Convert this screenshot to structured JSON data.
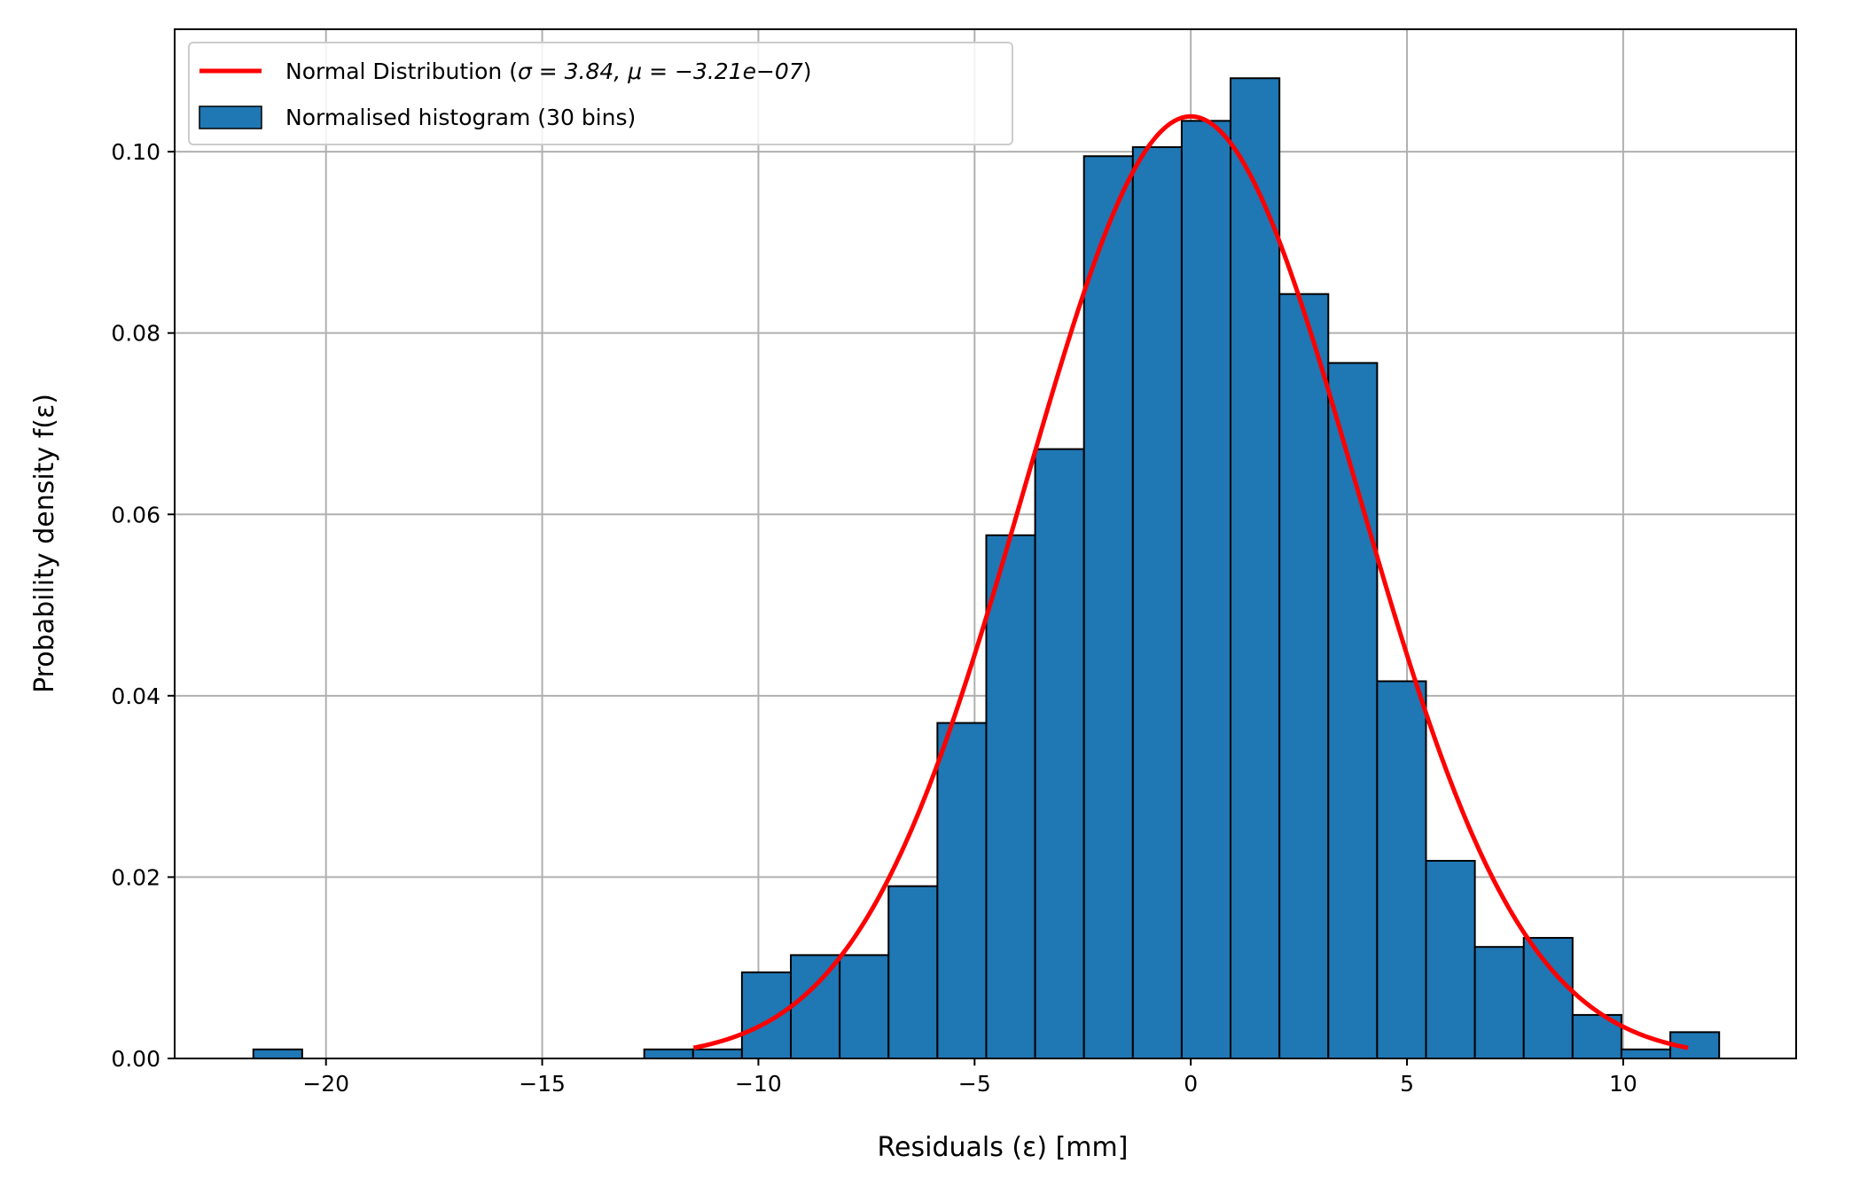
{
  "chart_data": {
    "type": "bar",
    "xlabel": "Residuals (ε) [mm]",
    "ylabel": "Probability density f(ε)",
    "xlim": [
      -23.5,
      14
    ],
    "ylim": [
      0,
      0.1135
    ],
    "grid": true,
    "legend_position": "top-left",
    "xticks": [
      -20,
      -15,
      -10,
      -5,
      0,
      5,
      10
    ],
    "xtick_labels": [
      "−20",
      "−15",
      "−10",
      "−5",
      "0",
      "5",
      "10"
    ],
    "yticks": [
      0.0,
      0.02,
      0.04,
      0.06,
      0.08,
      0.1
    ],
    "ytick_labels": [
      "0.00",
      "0.02",
      "0.04",
      "0.06",
      "0.08",
      "0.10"
    ],
    "histogram": {
      "label": "Normalised histogram (30 bins)",
      "color": "#1f77b4",
      "edge_color": "#000000",
      "bin_edges": [
        -21.68,
        -20.55,
        -19.42,
        -18.29,
        -17.16,
        -16.03,
        -14.9,
        -13.77,
        -12.64,
        -11.51,
        -10.38,
        -9.25,
        -8.12,
        -6.99,
        -5.86,
        -4.73,
        -3.6,
        -2.47,
        -1.34,
        -0.21,
        0.92,
        2.05,
        3.18,
        4.31,
        5.44,
        6.57,
        7.7,
        8.83,
        9.96,
        11.09,
        12.22
      ],
      "values": [
        0.001,
        0,
        0,
        0,
        0,
        0,
        0,
        0,
        0.001,
        0.001,
        0.0095,
        0.0114,
        0.0114,
        0.019,
        0.037,
        0.0577,
        0.0672,
        0.0995,
        0.1005,
        0.1034,
        0.1081,
        0.0843,
        0.0767,
        0.0416,
        0.0218,
        0.0123,
        0.0133,
        0.0048,
        0.001,
        0.0029
      ]
    },
    "normal_fit": {
      "label_prefix": "Normal Distribution (",
      "label_sigma": "σ = 3.84,",
      "label_mu": "μ = −3.21e−07",
      "label_suffix": ")",
      "color": "#ff0000",
      "sigma": 3.84,
      "mu": -3.21e-07,
      "x_range": [
        -11.5,
        11.5
      ]
    }
  }
}
